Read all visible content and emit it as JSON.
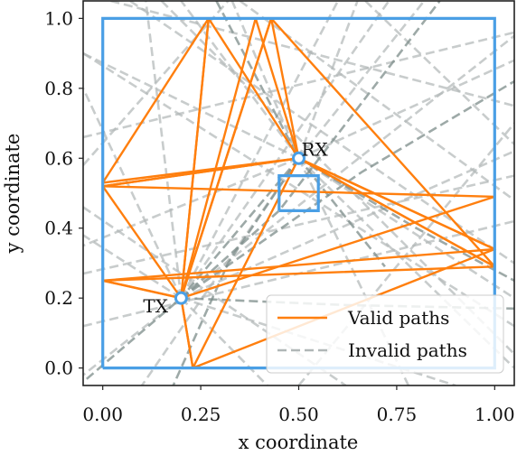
{
  "chart_data": {
    "type": "line",
    "xlabel": "x coordinate",
    "ylabel": "y coordinate",
    "xlim": [
      -0.05,
      1.05
    ],
    "ylim": [
      -0.05,
      1.05
    ],
    "xticks": [
      0.0,
      0.25,
      0.5,
      0.75,
      1.0
    ],
    "xtick_labels": [
      "0.00",
      "0.25",
      "0.50",
      "0.75",
      "1.00"
    ],
    "yticks": [
      0.0,
      0.2,
      0.4,
      0.6,
      0.8,
      1.0
    ],
    "ytick_labels": [
      "0.0",
      "0.2",
      "0.4",
      "0.6",
      "0.8",
      "1.0"
    ],
    "legend_position": "lower-right",
    "colors": {
      "valid": "#ff7f0e",
      "invalid": "#b0b7b7",
      "invalid_dark": "#7c8c8a",
      "walls": "#4a9fe5"
    },
    "walls": [
      {
        "name": "outer",
        "x": [
          0.0,
          1.0,
          1.0,
          0.0,
          0.0
        ],
        "y": [
          0.0,
          0.0,
          1.0,
          1.0,
          0.0
        ]
      },
      {
        "name": "inner",
        "x": [
          0.45,
          0.55,
          0.55,
          0.45,
          0.45
        ],
        "y": [
          0.45,
          0.45,
          0.55,
          0.55,
          0.45
        ]
      }
    ],
    "tx": {
      "label": "TX",
      "x": 0.2,
      "y": 0.2
    },
    "rx": {
      "label": "RX",
      "x": 0.5,
      "y": 0.6
    },
    "valid_paths": {
      "name": "Valid paths",
      "paths": [
        {
          "x": [
            0.2,
            0.27,
            0.5
          ],
          "y": [
            0.2,
            1.0,
            0.6
          ]
        },
        {
          "x": [
            0.2,
            0.39,
            0.5
          ],
          "y": [
            0.2,
            1.0,
            0.6
          ]
        },
        {
          "x": [
            0.2,
            0.43,
            0.5
          ],
          "y": [
            0.2,
            1.0,
            0.6
          ]
        },
        {
          "x": [
            0.2,
            0.0,
            0.5
          ],
          "y": [
            0.2,
            0.52,
            0.6
          ]
        },
        {
          "x": [
            0.2,
            0.27,
            0.0,
            0.5
          ],
          "y": [
            0.2,
            1.0,
            0.53,
            0.6
          ]
        },
        {
          "x": [
            0.2,
            1.0,
            0.0,
            0.5
          ],
          "y": [
            0.2,
            0.49,
            0.52,
            0.6
          ]
        },
        {
          "x": [
            0.2,
            0.0,
            1.0,
            0.5
          ],
          "y": [
            0.2,
            0.25,
            0.34,
            0.6
          ]
        },
        {
          "x": [
            0.2,
            0.0,
            1.0,
            0.5
          ],
          "y": [
            0.2,
            0.25,
            0.29,
            0.6
          ]
        },
        {
          "x": [
            0.2,
            0.23,
            0.5
          ],
          "y": [
            0.2,
            0.0,
            0.6
          ]
        },
        {
          "x": [
            0.2,
            0.23,
            1.0,
            0.5
          ],
          "y": [
            0.2,
            0.0,
            0.34,
            0.6
          ]
        },
        {
          "x": [
            0.2,
            0.43,
            1.0,
            0.5
          ],
          "y": [
            0.2,
            1.0,
            0.29,
            0.6
          ]
        }
      ]
    },
    "invalid_paths": {
      "name": "Invalid paths",
      "paths": [
        {
          "x": [
            0.2,
            0.6
          ],
          "y": [
            0.2,
            1.05
          ]
        },
        {
          "x": [
            0.2,
            0.73
          ],
          "y": [
            0.2,
            1.05
          ]
        },
        {
          "x": [
            0.2,
            1.05
          ],
          "y": [
            0.2,
            0.95
          ]
        },
        {
          "x": [
            0.2,
            1.05
          ],
          "y": [
            0.2,
            0.62
          ]
        },
        {
          "x": [
            0.2,
            -0.05
          ],
          "y": [
            0.2,
            0.8
          ]
        },
        {
          "x": [
            0.2,
            -0.05
          ],
          "y": [
            0.2,
            0.38
          ]
        },
        {
          "x": [
            0.2,
            -0.05
          ],
          "y": [
            0.2,
            -0.02
          ]
        },
        {
          "x": [
            0.2,
            0.42
          ],
          "y": [
            0.2,
            -0.05
          ]
        },
        {
          "x": [
            0.2,
            0.9
          ],
          "y": [
            0.2,
            -0.05
          ]
        },
        {
          "x": [
            0.2,
            0.11
          ],
          "y": [
            0.2,
            1.05
          ]
        },
        {
          "x": [
            0.5,
            0.2
          ],
          "y": [
            0.6,
            1.05
          ]
        },
        {
          "x": [
            0.5,
            0.33
          ],
          "y": [
            0.6,
            1.05
          ]
        },
        {
          "x": [
            0.5,
            0.65
          ],
          "y": [
            0.6,
            1.05
          ]
        },
        {
          "x": [
            0.5,
            0.82
          ],
          "y": [
            0.6,
            1.05
          ]
        },
        {
          "x": [
            0.5,
            1.05
          ],
          "y": [
            0.6,
            0.88
          ]
        },
        {
          "x": [
            0.5,
            1.05
          ],
          "y": [
            0.6,
            0.2
          ]
        },
        {
          "x": [
            0.5,
            1.05
          ],
          "y": [
            0.6,
            0.0
          ]
        },
        {
          "x": [
            0.5,
            -0.05
          ],
          "y": [
            0.6,
            0.9
          ]
        },
        {
          "x": [
            0.5,
            -0.05
          ],
          "y": [
            0.6,
            0.35
          ]
        },
        {
          "x": [
            0.5,
            0.1
          ],
          "y": [
            0.6,
            -0.05
          ]
        },
        {
          "x": [
            0.5,
            0.78
          ],
          "y": [
            0.6,
            -0.05
          ]
        },
        {
          "x": [
            0.07,
            1.05
          ],
          "y": [
            1.05,
            0.3
          ]
        },
        {
          "x": [
            0.02,
            1.05
          ],
          "y": [
            1.05,
            0.75
          ]
        },
        {
          "x": [
            -0.05,
            1.05
          ],
          "y": [
            0.66,
            0.96
          ]
        },
        {
          "x": [
            -0.05,
            1.05
          ],
          "y": [
            0.9,
            0.12
          ]
        },
        {
          "x": [
            0.15,
            1.05
          ],
          "y": [
            1.05,
            0.04
          ]
        },
        {
          "x": [
            -0.05,
            0.62
          ],
          "y": [
            0.46,
            -0.05
          ]
        },
        {
          "x": [
            -0.05,
            1.05
          ],
          "y": [
            0.12,
            0.42
          ]
        },
        {
          "x": [
            0.5,
            1.05
          ],
          "y": [
            -0.05,
            0.7
          ]
        },
        {
          "x": [
            0.67,
            1.05
          ],
          "y": [
            1.05,
            0.64
          ]
        },
        {
          "x": [
            -0.05,
            1.05
          ],
          "y": [
            0.27,
            0.55
          ]
        },
        {
          "x": [
            0.35,
            1.05
          ],
          "y": [
            1.05,
            0.48
          ]
        },
        {
          "x": [
            -0.05,
            0.32
          ],
          "y": [
            0.58,
            1.05
          ]
        }
      ],
      "dark_paths": [
        {
          "x": [
            0.2,
            0.66,
            1.05
          ],
          "y": [
            0.2,
            0.56,
            0.82
          ]
        },
        {
          "x": [
            0.2,
            0.45,
            0.86
          ],
          "y": [
            0.2,
            0.45,
            1.05
          ]
        },
        {
          "x": [
            0.5,
            0.2,
            -0.05
          ],
          "y": [
            0.6,
            0.2,
            -0.04
          ]
        },
        {
          "x": [
            0.2,
            0.62,
            1.05
          ],
          "y": [
            0.2,
            0.18,
            0.17
          ]
        },
        {
          "x": [
            0.5,
            0.8,
            1.05
          ],
          "y": [
            0.6,
            0.4,
            0.25
          ]
        },
        {
          "x": [
            0.5,
            0.32,
            0.18
          ],
          "y": [
            0.6,
            0.3,
            -0.05
          ]
        },
        {
          "x": [
            0.29,
            0.5,
            0.72
          ],
          "y": [
            1.05,
            0.6,
            0.29
          ]
        }
      ]
    }
  }
}
